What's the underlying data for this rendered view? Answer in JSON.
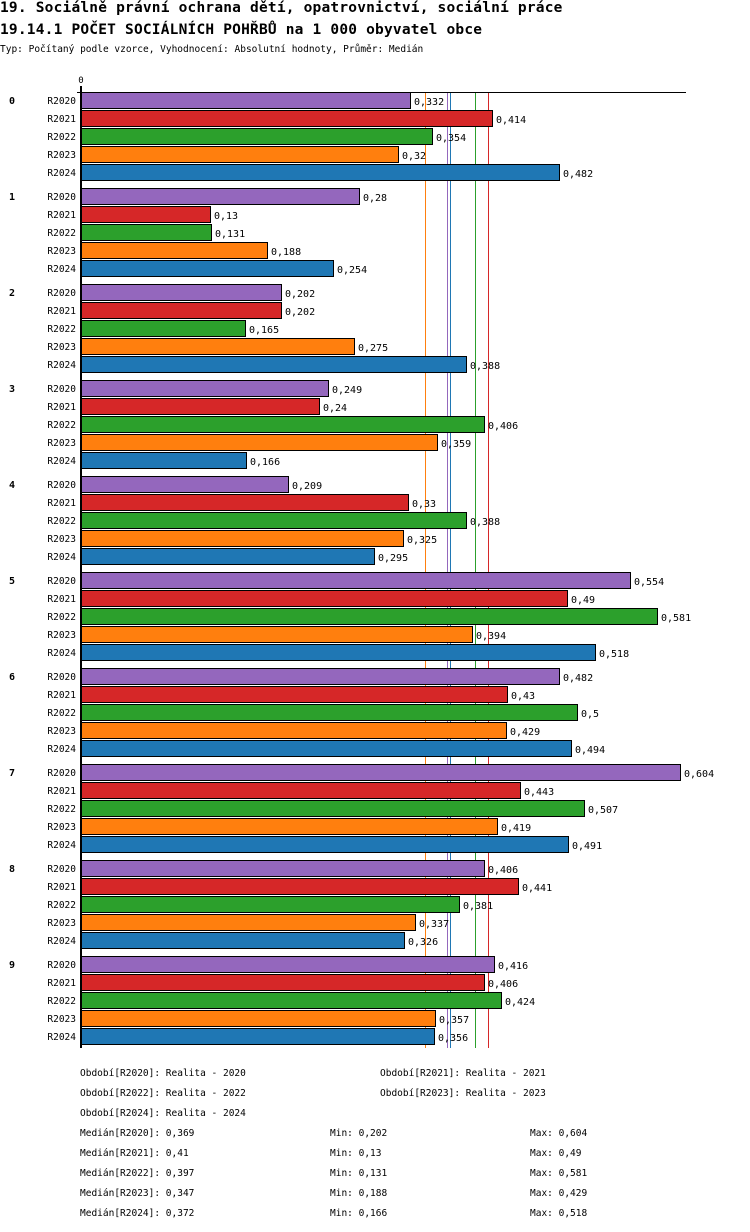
{
  "header": {
    "title": "19. Sociálně právní ochrana dětí, opatrovnictví, sociální práce",
    "subtitle": "19.14.1 POČET SOCIÁLNÍCH POHŘBŮ na 1 000 obyvatel obce",
    "info": "Typ: Počítaný podle vzorce, Vyhodnocení: Absolutní hodnoty, Průměr: Medián"
  },
  "chart_data": {
    "type": "bar",
    "orientation": "horizontal",
    "title": "19.14.1 POČET SOCIÁLNÍCH POHŘBŮ na 1 000 obyvatel obce",
    "xlabel": "",
    "ylabel": "",
    "x_tick_labels": [
      "0"
    ],
    "xlim": [
      0,
      0.61
    ],
    "grid": false,
    "categories": [
      "0",
      "1",
      "2",
      "3",
      "4",
      "5",
      "6",
      "7",
      "8",
      "9"
    ],
    "series": [
      {
        "name": "R2020",
        "color": "#9467bd",
        "values": [
          0.332,
          0.28,
          0.202,
          0.249,
          0.209,
          0.554,
          0.482,
          0.604,
          0.406,
          0.416
        ]
      },
      {
        "name": "R2021",
        "color": "#d62728",
        "values": [
          0.414,
          0.13,
          0.202,
          0.24,
          0.33,
          0.49,
          0.43,
          0.443,
          0.441,
          0.406
        ]
      },
      {
        "name": "R2022",
        "color": "#2ca02c",
        "values": [
          0.354,
          0.131,
          0.165,
          0.406,
          0.388,
          0.581,
          0.5,
          0.507,
          0.381,
          0.424
        ]
      },
      {
        "name": "R2023",
        "color": "#ff7f0e",
        "values": [
          0.32,
          0.188,
          0.275,
          0.359,
          0.325,
          0.394,
          0.429,
          0.419,
          0.337,
          0.357
        ]
      },
      {
        "name": "R2024",
        "color": "#1f77b4",
        "values": [
          0.482,
          0.254,
          0.388,
          0.166,
          0.295,
          0.518,
          0.494,
          0.491,
          0.326,
          0.356
        ]
      }
    ],
    "median_lines": [
      {
        "series": "R2020",
        "value": 0.369
      },
      {
        "series": "R2021",
        "value": 0.41
      },
      {
        "series": "R2022",
        "value": 0.397
      },
      {
        "series": "R2023",
        "value": 0.347
      },
      {
        "series": "R2024",
        "value": 0.372
      }
    ],
    "decimal_separator": ","
  },
  "legend": {
    "periods": [
      "Období[R2020]: Realita - 2020",
      "Období[R2021]: Realita - 2021",
      "Období[R2022]: Realita - 2022",
      "Období[R2023]: Realita - 2023",
      "Období[R2024]: Realita - 2024"
    ],
    "stats": [
      {
        "median": "Medián[R2020]: 0,369",
        "min": "Min: 0,202",
        "max": "Max: 0,604"
      },
      {
        "median": "Medián[R2021]: 0,41",
        "min": "Min: 0,13",
        "max": "Max: 0,49"
      },
      {
        "median": "Medián[R2022]: 0,397",
        "min": "Min: 0,131",
        "max": "Max: 0,581"
      },
      {
        "median": "Medián[R2023]: 0,347",
        "min": "Min: 0,188",
        "max": "Max: 0,429"
      },
      {
        "median": "Medián[R2024]: 0,372",
        "min": "Min: 0,166",
        "max": "Max: 0,518"
      }
    ]
  }
}
